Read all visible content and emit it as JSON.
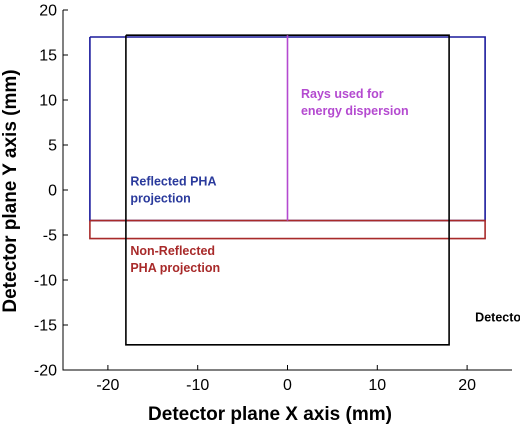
{
  "chart_data": {
    "type": "line",
    "title": "",
    "xlabel": "Detector plane X axis (mm)",
    "ylabel": "Detector plane Y axis (mm)",
    "xlim": [
      -25,
      25
    ],
    "ylim": [
      -20,
      20
    ],
    "xticks": [
      -20,
      -10,
      0,
      10,
      20
    ],
    "yticks": [
      -20,
      -15,
      -10,
      -5,
      0,
      5,
      10,
      15,
      20
    ],
    "grid": false,
    "series": [
      {
        "color": "#1a1a9c",
        "x": [
          -22,
          22,
          22,
          -22,
          -22
        ],
        "y": [
          17,
          17,
          -3.4,
          -3.4,
          17
        ]
      },
      {
        "color": "#a82a2a",
        "x": [
          -22,
          22,
          22,
          -22,
          -22
        ],
        "y": [
          -3.4,
          -3.4,
          -5.4,
          -5.4,
          -3.4
        ]
      },
      {
        "color": "#000000",
        "x": [
          -18,
          18,
          18,
          -18,
          -18
        ],
        "y": [
          17.2,
          17.2,
          -17.2,
          -17.2,
          17.2
        ]
      },
      {
        "color": "#b44ad0",
        "x": [
          0,
          0
        ],
        "y": [
          17.2,
          -3.4
        ]
      }
    ],
    "annotations": [
      {
        "lines": [
          "Rays used for",
          "energy dispersion"
        ],
        "x": 1.5,
        "y": 10.2,
        "color": "#b44ad0"
      },
      {
        "lines": [
          "Reflected PHA",
          "projection"
        ],
        "x": -17.5,
        "y": 0.5,
        "color": "#2a3a9c"
      },
      {
        "lines": [
          "Non-Reflected",
          "PHA projection"
        ],
        "x": -17.5,
        "y": -7.2,
        "color": "#a82a2a"
      },
      {
        "lines": [
          "Detector"
        ],
        "x": 20.9,
        "y": -14.6,
        "color": "#000000"
      }
    ]
  }
}
